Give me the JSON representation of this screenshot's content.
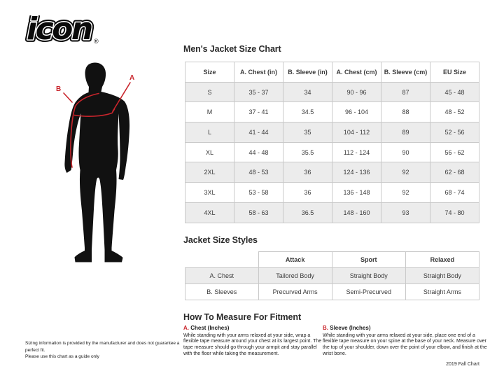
{
  "logo": {
    "text": "icon",
    "registered": "®"
  },
  "figure": {
    "label_a": "A",
    "label_b": "B"
  },
  "size_chart": {
    "title": "Men's Jacket Size Chart",
    "columns": [
      "Size",
      "A. Chest (in)",
      "B. Sleeve (in)",
      "A. Chest (cm)",
      "B. Sleeve (cm)",
      "EU Size"
    ],
    "rows": [
      [
        "S",
        "35 - 37",
        "34",
        "90 - 96",
        "87",
        "45 - 48"
      ],
      [
        "M",
        "37 - 41",
        "34.5",
        "96 - 104",
        "88",
        "48 - 52"
      ],
      [
        "L",
        "41 - 44",
        "35",
        "104 - 112",
        "89",
        "52 - 56"
      ],
      [
        "XL",
        "44 - 48",
        "35.5",
        "112 - 124",
        "90",
        "56 - 62"
      ],
      [
        "2XL",
        "48 - 53",
        "36",
        "124 - 136",
        "92",
        "62 - 68"
      ],
      [
        "3XL",
        "53 - 58",
        "36",
        "136 - 148",
        "92",
        "68 - 74"
      ],
      [
        "4XL",
        "58 - 63",
        "36.5",
        "148 - 160",
        "93",
        "74 - 80"
      ]
    ]
  },
  "styles_chart": {
    "title": "Jacket Size Styles",
    "columns": [
      "",
      "Attack",
      "Sport",
      "Relaxed"
    ],
    "rows": [
      [
        "A. Chest",
        "Tailored Body",
        "Straight Body",
        "Straight Body"
      ],
      [
        "B. Sleeves",
        "Precurved Arms",
        "Semi-Precurved",
        "Straight Arms"
      ]
    ]
  },
  "measure": {
    "title": "How To Measure For Fitment",
    "chest": {
      "label_prefix": "A.",
      "label": "Chest (Inches)",
      "text": "While standing with your arms relaxed at your side, wrap a flexible tape measure around your chest at its largest point. The tape measure should go through your armpit and stay parallel with the floor while taking the measurement."
    },
    "sleeve": {
      "label_prefix": "B.",
      "label": "Sleeve (Inches)",
      "text": "While standing with your arms relaxed at your side, place one end of a flexible tape measure on your spine at the base of your neck. Measure over the top of your shoulder, down over the point of your elbow, and finish at the wrist bone."
    }
  },
  "footer": {
    "disclaimer_lines": [
      "Sizing information is provided by the manufacturer and does not guarantee a perfect fit.",
      "Please use this chart as a guide only"
    ],
    "chart_version": "2019 Fall Chart"
  },
  "colors": {
    "accent_red": "#c9252c",
    "silhouette_black": "#111111",
    "row_stripe": "#ececec",
    "table_border": "#c9c9c9",
    "text": "#3b3b3b"
  }
}
